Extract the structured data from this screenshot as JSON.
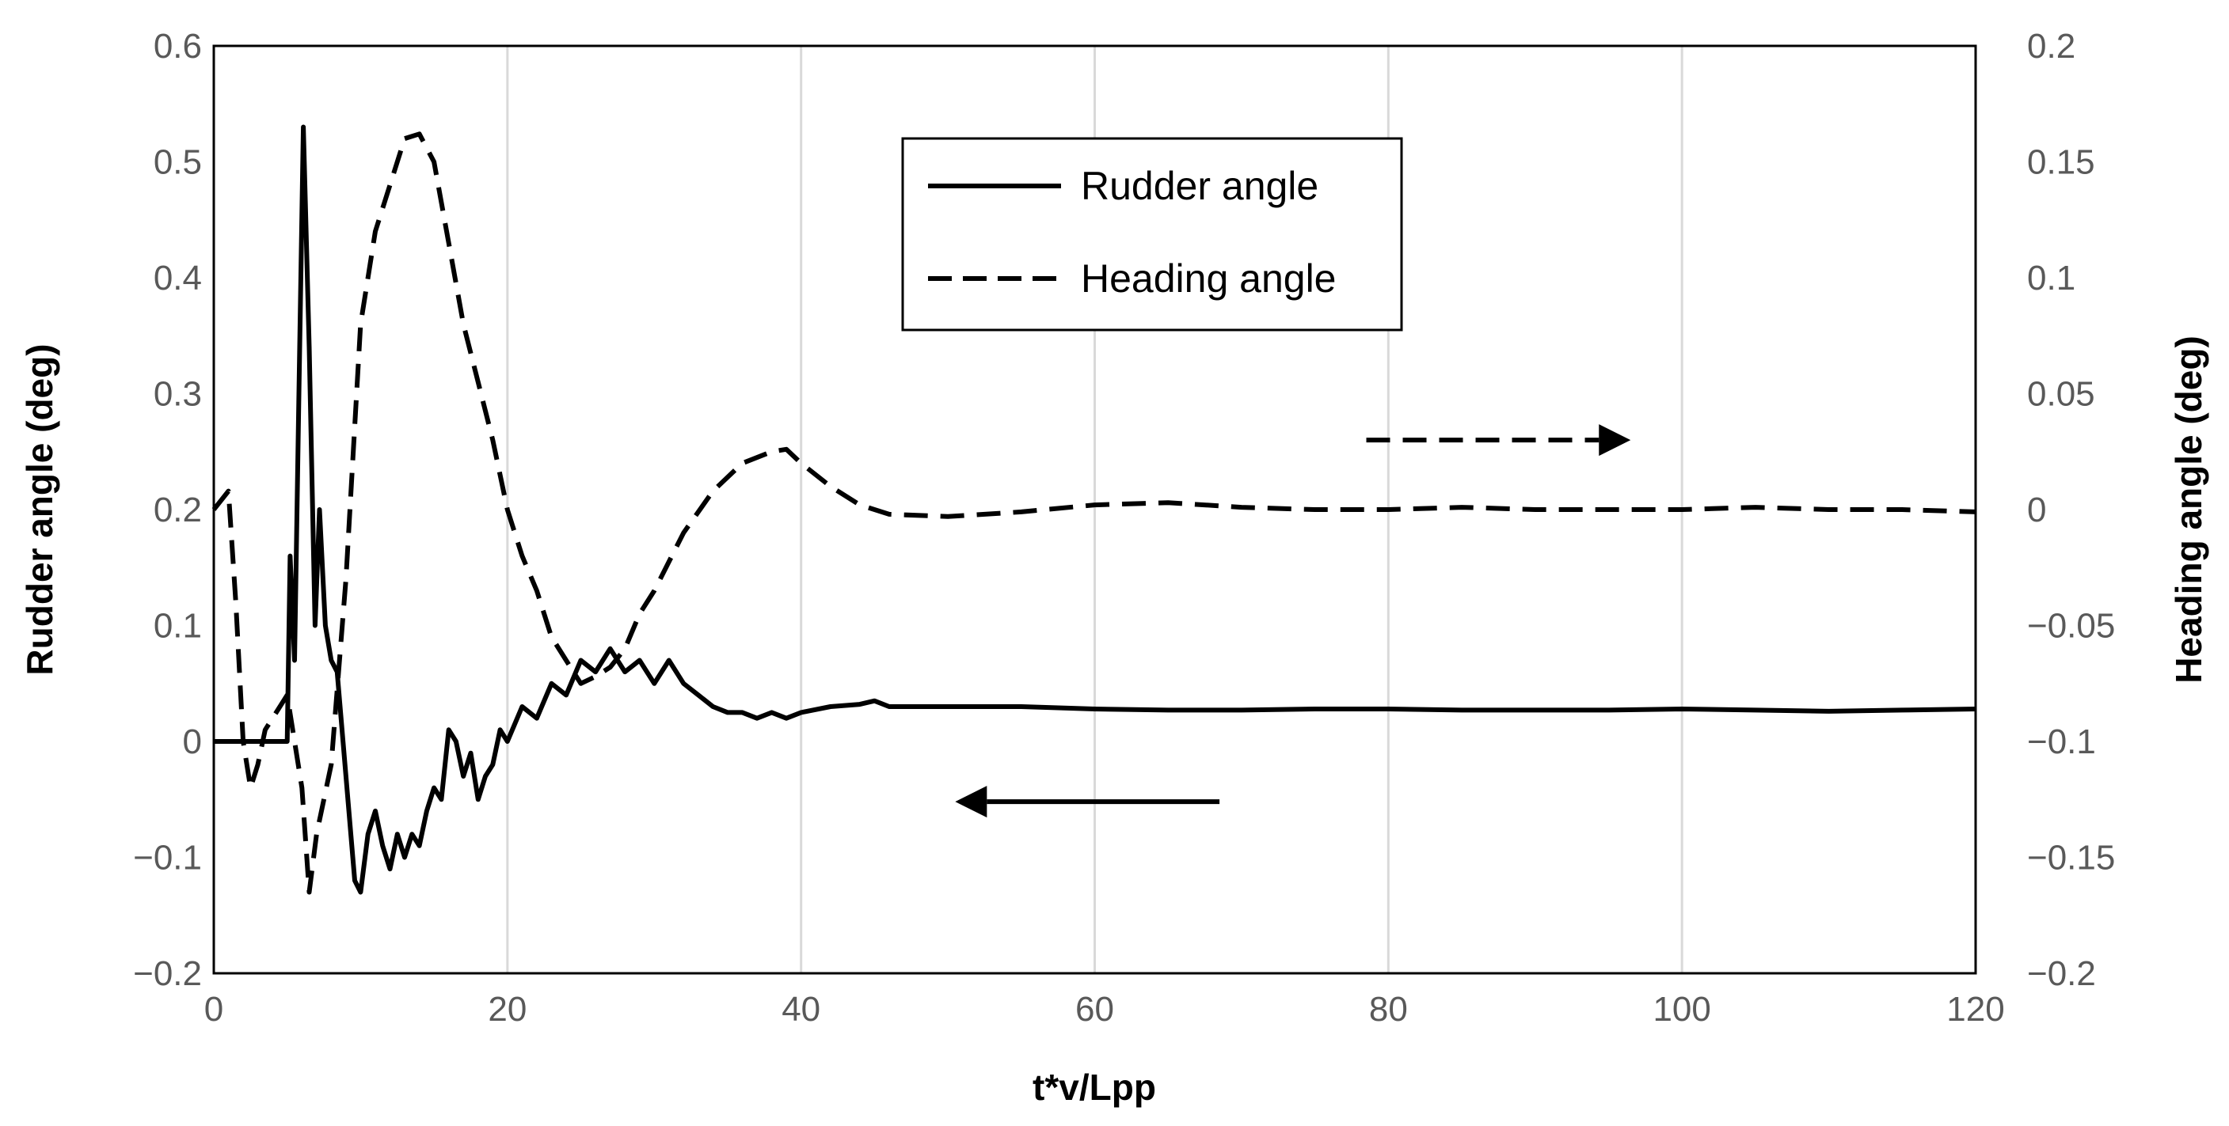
{
  "chart_data": {
    "type": "line",
    "xlabel": "t*v/Lpp",
    "ylabel_left": "Rudder angle (deg)",
    "ylabel_right": "Heading angle (deg)",
    "xlim": [
      0,
      120
    ],
    "ylim_left": [
      -0.2,
      0.6
    ],
    "ylim_right": [
      -0.2,
      0.2
    ],
    "x_ticks": [
      "0",
      "20",
      "40",
      "60",
      "80",
      "100",
      "120"
    ],
    "y_left_ticks": [
      "0.6",
      "0.5",
      "0.4",
      "0.3",
      "0.2",
      "0.1",
      "0",
      "−0.1",
      "−0.2"
    ],
    "y_right_ticks": [
      "0.2",
      "0.15",
      "0.1",
      "0.05",
      "0",
      "−0.05",
      "−0.1",
      "−0.15",
      "−0.2"
    ],
    "grid": "vertical",
    "legend_position": "top-center",
    "series": [
      {
        "name": "Rudder angle",
        "axis": "left",
        "style": "solid",
        "color": "#000000",
        "x": [
          0,
          5,
          5.2,
          5.5,
          5.8,
          6.1,
          6.5,
          6.9,
          7.2,
          7.6,
          8.0,
          8.4,
          8.8,
          9.2,
          9.6,
          10.0,
          10.5,
          11,
          11.5,
          12,
          12.5,
          13,
          13.5,
          14,
          14.5,
          15,
          15.5,
          16,
          16.5,
          17,
          17.5,
          18,
          18.5,
          19,
          19.5,
          20,
          21,
          22,
          23,
          24,
          25,
          26,
          27,
          28,
          29,
          30,
          31,
          32,
          33,
          34,
          35,
          36,
          37,
          38,
          39,
          40,
          42,
          44,
          45,
          46,
          50,
          55,
          60,
          65,
          70,
          75,
          80,
          85,
          90,
          95,
          100,
          105,
          110,
          115,
          120
        ],
        "y": [
          0,
          0,
          0.16,
          0.07,
          0.3,
          0.53,
          0.34,
          0.1,
          0.2,
          0.1,
          0.07,
          0.06,
          0.0,
          -0.06,
          -0.12,
          -0.13,
          -0.08,
          -0.06,
          -0.09,
          -0.11,
          -0.08,
          -0.1,
          -0.08,
          -0.09,
          -0.06,
          -0.04,
          -0.05,
          0.01,
          0.0,
          -0.03,
          -0.01,
          -0.05,
          -0.03,
          -0.02,
          0.01,
          0.0,
          0.03,
          0.02,
          0.05,
          0.04,
          0.07,
          0.06,
          0.08,
          0.06,
          0.07,
          0.05,
          0.07,
          0.05,
          0.04,
          0.03,
          0.025,
          0.025,
          0.02,
          0.025,
          0.02,
          0.025,
          0.03,
          0.032,
          0.035,
          0.03,
          0.03,
          0.03,
          0.028,
          0.027,
          0.027,
          0.028,
          0.028,
          0.027,
          0.027,
          0.027,
          0.028,
          0.027,
          0.026,
          0.027,
          0.028
        ]
      },
      {
        "name": "Heading angle",
        "axis": "right",
        "style": "dashed",
        "color": "#000000",
        "x": [
          0,
          1,
          1.5,
          2,
          2.5,
          3,
          3.5,
          4,
          5,
          6,
          6.5,
          7,
          8,
          9,
          10,
          11,
          12,
          13,
          14,
          15,
          16,
          17,
          18,
          19,
          20,
          21,
          22,
          23,
          24,
          25,
          26,
          27,
          28,
          29,
          30,
          32,
          34,
          36,
          38,
          39,
          40,
          42,
          44,
          46,
          50,
          55,
          60,
          65,
          70,
          75,
          80,
          85,
          90,
          95,
          100,
          105,
          110,
          115,
          120
        ],
        "y": [
          0,
          0.008,
          -0.04,
          -0.1,
          -0.12,
          -0.11,
          -0.095,
          -0.09,
          -0.08,
          -0.12,
          -0.165,
          -0.14,
          -0.11,
          -0.03,
          0.08,
          0.12,
          0.14,
          0.16,
          0.162,
          0.15,
          0.115,
          0.08,
          0.055,
          0.03,
          0.0,
          -0.02,
          -0.035,
          -0.055,
          -0.065,
          -0.075,
          -0.072,
          -0.068,
          -0.06,
          -0.045,
          -0.035,
          -0.01,
          0.008,
          0.02,
          0.025,
          0.026,
          0.02,
          0.01,
          0.002,
          -0.002,
          -0.003,
          -0.001,
          0.002,
          0.003,
          0.001,
          0.0,
          0.0,
          0.001,
          0.0,
          0.0,
          0.0,
          0.001,
          0.0,
          0.0,
          -0.001
        ]
      }
    ],
    "annotations": [
      {
        "type": "arrow",
        "style": "dashed",
        "direction": "right",
        "x_from": 78.5,
        "x_to": 96.5,
        "y_right": 0.03
      },
      {
        "type": "arrow",
        "style": "solid",
        "direction": "left",
        "x_from": 68.5,
        "x_to": 50.5,
        "y_left": -0.052
      }
    ]
  }
}
